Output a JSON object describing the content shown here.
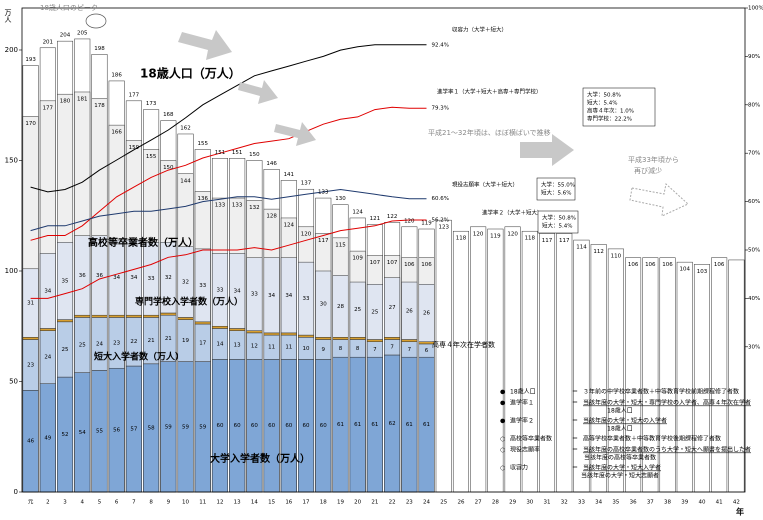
{
  "chart_data": {
    "type": "bar",
    "categories": [
      "元",
      "2",
      "3",
      "4",
      "5",
      "6",
      "7",
      "8",
      "9",
      "10",
      "11",
      "12",
      "13",
      "14",
      "15",
      "16",
      "17",
      "18",
      "19",
      "20",
      "21",
      "22",
      "23",
      "24",
      "25",
      "26",
      "27",
      "28",
      "29",
      "30",
      "31",
      "32",
      "33",
      "34",
      "35",
      "36",
      "37",
      "38",
      "39",
      "40",
      "41",
      "42"
    ],
    "x_label": "年",
    "y_label": "万人",
    "ylim": [
      0,
      219
    ],
    "yticks": [
      0,
      50,
      100,
      150,
      200
    ],
    "y2lim": [
      0,
      100
    ],
    "y2ticks": [
      {
        "value": 30,
        "label": "30%"
      },
      {
        "value": 40,
        "label": "40%"
      },
      {
        "value": 50,
        "label": "50%"
      },
      {
        "value": 60,
        "label": "60%"
      },
      {
        "value": 70,
        "label": "70%"
      },
      {
        "value": 80,
        "label": "80%"
      },
      {
        "value": 90,
        "label": "90%"
      },
      {
        "value": 100,
        "label": "100%"
      }
    ],
    "grid": false,
    "series": [
      {
        "name": "18歳人口（万人）",
        "color": "#ffffff",
        "values": [
          193,
          201,
          204,
          205,
          198,
          186,
          177,
          173,
          168,
          162,
          155,
          151,
          151,
          150,
          146,
          141,
          137,
          133,
          130,
          124,
          121,
          122,
          120,
          119,
          123,
          118,
          120,
          119,
          120,
          118,
          117,
          117,
          114,
          112,
          110,
          106,
          106,
          106,
          104,
          103,
          106,
          105
        ],
        "value_labels": [
          "193",
          "201",
          "204",
          "205",
          "198",
          "186",
          "177",
          "173",
          "168",
          "162",
          "155",
          "151",
          "151",
          "150",
          "146",
          "141",
          "137",
          "133",
          "130",
          "124",
          "121",
          "122",
          "120",
          "119",
          "123",
          "118",
          "120",
          "119",
          "120",
          "118",
          "117",
          "117",
          "114",
          "112",
          "110",
          "106",
          "106",
          "106",
          "104",
          "103",
          "106",
          null
        ]
      },
      {
        "name": "高校等卒業者数（万人）",
        "color": "#efefef",
        "values": [
          170,
          177,
          180,
          181,
          178,
          166,
          159,
          155,
          150,
          144,
          136,
          133,
          133,
          132,
          128,
          124,
          120,
          117,
          115,
          109,
          107,
          107,
          106,
          106,
          null,
          null,
          null,
          null,
          null,
          null,
          null,
          null,
          null,
          null,
          null,
          null,
          null,
          null,
          null,
          null,
          null,
          null
        ]
      },
      {
        "name": "大学入学者数（万人）",
        "color": "#7fa6d6",
        "stack": true,
        "values": [
          46,
          49,
          52,
          54,
          55,
          56,
          57,
          58,
          59,
          59,
          59,
          60,
          60,
          60,
          60,
          60,
          60,
          60,
          61,
          61,
          61,
          62,
          61,
          61,
          null,
          null,
          null,
          null,
          null,
          null,
          null,
          null,
          null,
          null,
          null,
          null,
          null,
          null,
          null,
          null,
          null,
          null
        ]
      },
      {
        "name": "短大入学者数（万人）",
        "color": "#b9cde7",
        "stack": true,
        "values": [
          23,
          24,
          25,
          25,
          24,
          23,
          22,
          21,
          21,
          19,
          17,
          14,
          13,
          12,
          11,
          11,
          10,
          9,
          8,
          8,
          7,
          7,
          7,
          6,
          null,
          null,
          null,
          null,
          null,
          null,
          null,
          null,
          null,
          null,
          null,
          null,
          null,
          null,
          null,
          null,
          null,
          null
        ]
      },
      {
        "name": "高専４年次在学者数",
        "color": "#d9a030",
        "stack": true,
        "labels": false,
        "values": [
          1,
          1,
          1,
          1,
          1,
          1,
          1,
          1,
          1,
          1,
          1,
          1,
          1,
          1,
          1,
          1,
          1,
          1,
          1,
          1,
          1,
          1,
          1,
          1,
          null,
          null,
          null,
          null,
          null,
          null,
          null,
          null,
          null,
          null,
          null,
          null,
          null,
          null,
          null,
          null,
          null,
          null
        ]
      },
      {
        "name": "専門学校入学者数（万人）",
        "color": "#dfe5f1",
        "stack": true,
        "values": [
          31,
          34,
          35,
          36,
          36,
          34,
          34,
          33,
          32,
          32,
          33,
          33,
          34,
          33,
          34,
          34,
          33,
          30,
          28,
          25,
          25,
          27,
          26,
          26,
          null,
          null,
          null,
          null,
          null,
          null,
          null,
          null,
          null,
          null,
          null,
          null,
          null,
          null,
          null,
          null,
          null,
          null
        ]
      },
      {
        "name": "収容力（大学＋短大）",
        "color": "#000000",
        "axis": "y2",
        "values": [
          63,
          62,
          62.5,
          64,
          66.5,
          68.6,
          70.7,
          72.7,
          74.8,
          77.3,
          80,
          82,
          84,
          86,
          87,
          88,
          89,
          90,
          91.3,
          92,
          92.4,
          92.4,
          92.4,
          92.4,
          null,
          null,
          null,
          null,
          null,
          null,
          null,
          null,
          null,
          null,
          null,
          null,
          null,
          null,
          null,
          null,
          null,
          null
        ],
        "value_labels": [
          null,
          null,
          null,
          null,
          null,
          null,
          null,
          null,
          null,
          null,
          null,
          null,
          null,
          null,
          null,
          null,
          null,
          null,
          null,
          null,
          null,
          null,
          null,
          "92.4%",
          null,
          null,
          null,
          null,
          null,
          null,
          null,
          null,
          null,
          null,
          null,
          null,
          null,
          null,
          null,
          null,
          null,
          null
        ]
      },
      {
        "name": "進学率１（大学＋短大＋高専＋専門学校）",
        "color": "#e00000",
        "axis": "y2",
        "values": [
          52,
          53,
          53,
          55,
          58,
          61,
          63,
          65,
          66.5,
          67.5,
          69,
          70,
          71,
          72,
          72.5,
          73,
          74.5,
          76,
          77,
          77.5,
          79,
          79.5,
          79.3,
          79.3,
          null,
          null,
          null,
          null,
          null,
          null,
          null,
          null,
          null,
          null,
          null,
          null,
          null,
          null,
          null,
          null,
          null,
          null
        ],
        "value_labels": [
          null,
          null,
          null,
          null,
          null,
          null,
          null,
          null,
          null,
          null,
          null,
          null,
          null,
          null,
          null,
          null,
          null,
          null,
          null,
          null,
          null,
          null,
          null,
          "79.3%",
          null,
          null,
          null,
          null,
          null,
          null,
          null,
          null,
          null,
          null,
          null,
          null,
          null,
          null,
          null,
          null,
          null,
          null
        ]
      },
      {
        "name": "現役志願率（大学＋短大）",
        "color": "#1f3a6e",
        "axis": "y2",
        "values": [
          54,
          55,
          55,
          56,
          57,
          57.5,
          58,
          58,
          58.5,
          59,
          60,
          60.5,
          61,
          61,
          60.5,
          61,
          61.5,
          62,
          62.5,
          62,
          61.5,
          61,
          60.6,
          60.6,
          null,
          null,
          null,
          null,
          null,
          null,
          null,
          null,
          null,
          null,
          null,
          null,
          null,
          null,
          null,
          null,
          null,
          null
        ],
        "value_labels": [
          null,
          null,
          null,
          null,
          null,
          null,
          null,
          null,
          null,
          null,
          null,
          null,
          null,
          null,
          null,
          null,
          null,
          null,
          null,
          null,
          null,
          null,
          null,
          "60.6%",
          null,
          null,
          null,
          null,
          null,
          null,
          null,
          null,
          null,
          null,
          null,
          null,
          null,
          null,
          null,
          null,
          null,
          null
        ]
      },
      {
        "name": "進学率２（大学＋短大）",
        "color": "#e00000",
        "axis": "y2",
        "values": [
          40,
          40,
          41,
          42,
          44,
          45,
          46,
          47,
          48.5,
          49,
          50,
          50,
          50,
          50.5,
          50,
          51,
          52,
          53,
          54,
          54.5,
          55,
          56,
          56.2,
          56.2,
          null,
          null,
          null,
          null,
          null,
          null,
          null,
          null,
          null,
          null,
          null,
          null,
          null,
          null,
          null,
          null,
          null,
          null
        ],
        "value_labels": [
          null,
          null,
          null,
          null,
          null,
          null,
          null,
          null,
          null,
          null,
          null,
          null,
          null,
          null,
          null,
          null,
          null,
          null,
          null,
          null,
          null,
          null,
          null,
          "56.2%",
          null,
          null,
          null,
          null,
          null,
          null,
          null,
          null,
          null,
          null,
          null,
          null,
          null,
          null,
          null,
          null,
          null,
          null
        ]
      }
    ],
    "annotations": [
      "18歳人口のピーク",
      "平成21～32年頃は、ほぼ横ばいで推移",
      "平成33年頃から",
      "再び減少"
    ],
    "boxes": [
      [
        "大学：50.8%",
        "短大：5.4%",
        "高専４年次：1.0%",
        "専門学校：22.2%"
      ],
      [
        "大学：55.0%",
        "短大：5.6%"
      ],
      [
        "大学：50.8%",
        "短大：5.4%"
      ]
    ],
    "definition_sign": "＝",
    "definitions": [
      {
        "bullet": "●",
        "term": "18歳人口",
        "definition": "３年前の中学校卒業者数＋中等教育学校前期課程修了者数"
      },
      {
        "bullet": "●",
        "term": "進学率１",
        "definition": "当該年度の大学・短大・専門学校の入学者、高専４年次在学者",
        "denominator": "18歳人口"
      },
      {
        "bullet": "●",
        "term": "進学率２",
        "definition": "当該年度の大学・短大の入学者",
        "denominator": "18歳人口"
      },
      {
        "bullet": "○",
        "term": "高校等卒業者数",
        "definition": "高等学校卒業者数＋中等教育学校後期課程修了者数"
      },
      {
        "bullet": "○",
        "term": "現役志願率",
        "definition": "当該年度の高校卒業者数のうち大学・短大へ願書を提出した者",
        "denominator": "当該年度の高校等卒業者数"
      },
      {
        "bullet": "○",
        "term": "収容力",
        "definition": "当該年度の大学・短大入学者",
        "denominator": "当該年度の大学・短大志願者"
      }
    ]
  }
}
